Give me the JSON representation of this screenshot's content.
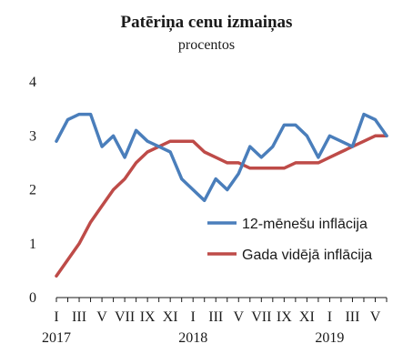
{
  "chart_data": {
    "type": "line",
    "title": "Patēriņa cenu izmaiņas",
    "subtitle": "procentos",
    "xlabel": "",
    "ylabel": "",
    "ylim": [
      0,
      4
    ],
    "yticks": [
      "0",
      "1",
      "2",
      "3",
      "4"
    ],
    "grid": false,
    "legend_position": "right",
    "x": [
      "2017-01",
      "2017-02",
      "2017-03",
      "2017-04",
      "2017-05",
      "2017-06",
      "2017-07",
      "2017-08",
      "2017-09",
      "2017-10",
      "2017-11",
      "2017-12",
      "2018-01",
      "2018-02",
      "2018-03",
      "2018-04",
      "2018-05",
      "2018-06",
      "2018-07",
      "2018-08",
      "2018-09",
      "2018-10",
      "2018-11",
      "2018-12",
      "2019-01",
      "2019-02",
      "2019-03",
      "2019-04",
      "2019-05",
      "2019-06"
    ],
    "xtick_labels": [
      "I",
      "III",
      "V",
      "VII",
      "IX",
      "XI",
      "I",
      "III",
      "V",
      "VII",
      "IX",
      "XI",
      "I",
      "III",
      "V"
    ],
    "year_labels": [
      "2017",
      "2018",
      "2019"
    ],
    "series": [
      {
        "name": "12-mēnešu inflācija",
        "color": "#4a7ebb",
        "values": [
          2.9,
          3.3,
          3.4,
          3.4,
          2.8,
          3.0,
          2.6,
          3.1,
          2.9,
          2.8,
          2.7,
          2.2,
          2.0,
          1.8,
          2.2,
          2.0,
          2.3,
          2.8,
          2.6,
          2.8,
          3.2,
          3.2,
          3.0,
          2.6,
          3.0,
          2.9,
          2.8,
          3.4,
          3.3,
          3.0
        ]
      },
      {
        "name": "Gada vidējā inflācija",
        "color": "#be4b48",
        "values": [
          0.4,
          0.7,
          1.0,
          1.4,
          1.7,
          2.0,
          2.2,
          2.5,
          2.7,
          2.8,
          2.9,
          2.9,
          2.9,
          2.7,
          2.6,
          2.5,
          2.5,
          2.4,
          2.4,
          2.4,
          2.4,
          2.5,
          2.5,
          2.5,
          2.6,
          2.7,
          2.8,
          2.9,
          3.0,
          3.0
        ]
      }
    ]
  }
}
